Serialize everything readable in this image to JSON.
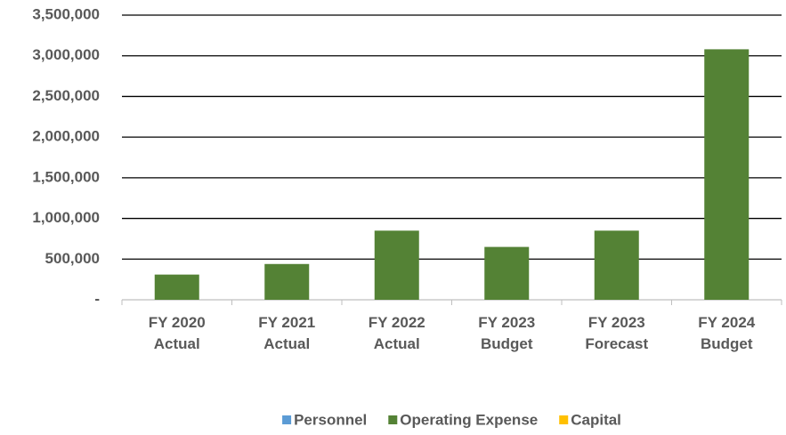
{
  "chart_data": {
    "type": "bar",
    "stacked": true,
    "categories": [
      [
        "FY 2020",
        "Actual"
      ],
      [
        "FY 2021",
        "Actual"
      ],
      [
        "FY 2022",
        "Actual"
      ],
      [
        "FY 2023",
        "Budget"
      ],
      [
        "FY 2023",
        "Forecast"
      ],
      [
        "FY 2024",
        "Budget"
      ]
    ],
    "series": [
      {
        "name": "Personnel",
        "color": "#5b9bd5",
        "values": [
          0,
          0,
          0,
          0,
          0,
          0
        ]
      },
      {
        "name": "Operating Expense",
        "color": "#548235",
        "values": [
          310000,
          440000,
          850000,
          650000,
          850000,
          3080000
        ]
      },
      {
        "name": "Capital",
        "color": "#ffc000",
        "values": [
          0,
          0,
          0,
          0,
          0,
          0
        ]
      }
    ],
    "ylim": [
      0,
      3500000
    ],
    "yticks": [
      {
        "value": 0,
        "label": "-"
      },
      {
        "value": 500000,
        "label": "500,000"
      },
      {
        "value": 1000000,
        "label": "1,000,000"
      },
      {
        "value": 1500000,
        "label": "1,500,000"
      },
      {
        "value": 2000000,
        "label": "2,000,000"
      },
      {
        "value": 2500000,
        "label": "2,500,000"
      },
      {
        "value": 3000000,
        "label": "3,000,000"
      },
      {
        "value": 3500000,
        "label": "3,500,000"
      }
    ],
    "grid": true,
    "legend": "bottom"
  }
}
